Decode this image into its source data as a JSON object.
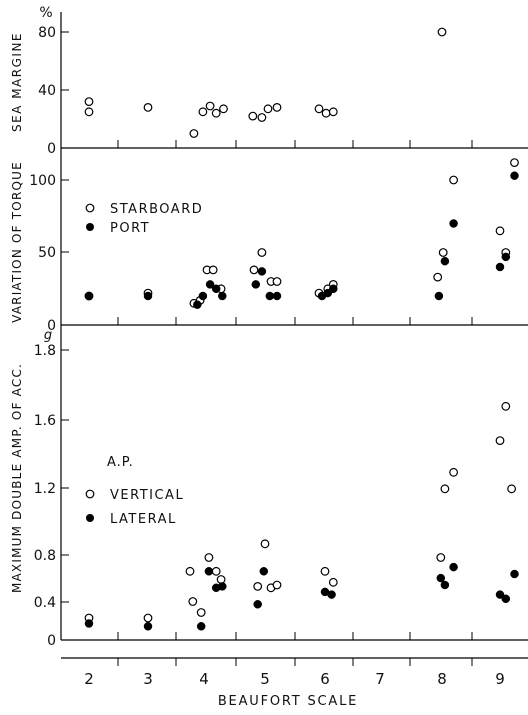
{
  "x_axis": {
    "label": "BEAUFORT SCALE",
    "ticks": [
      "2",
      "3",
      "4",
      "5",
      "6",
      "7",
      "8",
      "9"
    ]
  },
  "chart_data": [
    {
      "type": "scatter",
      "ylabel": "SEA MARGINE",
      "unit": "%",
      "ylim": [
        0,
        90
      ],
      "yticks": [
        "0",
        "40",
        "80"
      ],
      "series": [
        {
          "marker": "open-circle",
          "points": [
            [
              2,
              32
            ],
            [
              2,
              25
            ],
            [
              3,
              28
            ],
            [
              3.82,
              10
            ],
            [
              3.98,
              25
            ],
            [
              4.1,
              29
            ],
            [
              4.2,
              24
            ],
            [
              4.32,
              27
            ],
            [
              4.8,
              22
            ],
            [
              4.95,
              21
            ],
            [
              5.05,
              27
            ],
            [
              5.2,
              28
            ],
            [
              5.9,
              27
            ],
            [
              6.02,
              24
            ],
            [
              6.15,
              25
            ],
            [
              8,
              80
            ]
          ]
        }
      ]
    },
    {
      "type": "scatter",
      "ylabel": "VARIATION OF TORQUE",
      "ylim": [
        0,
        110
      ],
      "yticks": [
        "0",
        "50",
        "100"
      ],
      "series": [
        {
          "name": "STARBOARD",
          "marker": "open-circle",
          "points": [
            [
              2,
              20
            ],
            [
              3,
              22
            ],
            [
              3.82,
              15
            ],
            [
              3.93,
              17
            ],
            [
              4.05,
              38
            ],
            [
              4.15,
              38
            ],
            [
              4.28,
              25
            ],
            [
              4.82,
              38
            ],
            [
              4.95,
              50
            ],
            [
              5.1,
              30
            ],
            [
              5.2,
              30
            ],
            [
              5.9,
              22
            ],
            [
              6.05,
              25
            ],
            [
              6.15,
              28
            ],
            [
              7.93,
              33
            ],
            [
              8.02,
              50
            ],
            [
              8.2,
              100
            ],
            [
              9,
              65
            ],
            [
              9.1,
              50
            ],
            [
              9.25,
              112
            ]
          ]
        },
        {
          "name": "PORT",
          "marker": "filled-circle",
          "points": [
            [
              2,
              20
            ],
            [
              3,
              20
            ],
            [
              3.88,
              14
            ],
            [
              3.98,
              20
            ],
            [
              4.1,
              28
            ],
            [
              4.2,
              25
            ],
            [
              4.3,
              20
            ],
            [
              4.85,
              28
            ],
            [
              4.95,
              37
            ],
            [
              5.08,
              20
            ],
            [
              5.2,
              20
            ],
            [
              5.95,
              20
            ],
            [
              6.05,
              22
            ],
            [
              6.15,
              25
            ],
            [
              7.95,
              20
            ],
            [
              8.05,
              44
            ],
            [
              8.2,
              70
            ],
            [
              9,
              40
            ],
            [
              9.1,
              47
            ],
            [
              9.25,
              103
            ]
          ]
        }
      ]
    },
    {
      "type": "scatter",
      "ylabel": "MAXIMUM  DOUBLE AMP. OF ACC.",
      "unit": "g",
      "ylim": [
        0,
        1.85
      ],
      "yticks": [
        "0",
        "0.4",
        "0.8",
        "1.2",
        "1.6",
        "1.8"
      ],
      "legend_title": "A.P.",
      "series": [
        {
          "name": "VERTICAL",
          "marker": "open-circle",
          "points": [
            [
              2,
              0.16
            ],
            [
              3,
              0.16
            ],
            [
              3.75,
              0.5
            ],
            [
              3.8,
              0.28
            ],
            [
              3.95,
              0.2
            ],
            [
              4.08,
              0.6
            ],
            [
              4.2,
              0.5
            ],
            [
              4.28,
              0.44
            ],
            [
              4.88,
              0.39
            ],
            [
              5,
              0.7
            ],
            [
              5.1,
              0.38
            ],
            [
              5.2,
              0.4
            ],
            [
              6,
              0.5
            ],
            [
              6.15,
              0.42
            ],
            [
              7.98,
              0.6
            ],
            [
              8.05,
              1.1
            ],
            [
              8.2,
              1.22
            ],
            [
              9,
              1.45
            ],
            [
              9.1,
              1.7
            ],
            [
              9.2,
              1.1
            ]
          ]
        },
        {
          "name": "LATERAL",
          "marker": "filled-circle",
          "points": [
            [
              2,
              0.12
            ],
            [
              3,
              0.1
            ],
            [
              3.95,
              0.1
            ],
            [
              4.08,
              0.5
            ],
            [
              4.2,
              0.38
            ],
            [
              4.3,
              0.39
            ],
            [
              4.88,
              0.26
            ],
            [
              4.98,
              0.5
            ],
            [
              6,
              0.35
            ],
            [
              6.12,
              0.33
            ],
            [
              7.98,
              0.45
            ],
            [
              8.05,
              0.4
            ],
            [
              8.2,
              0.53
            ],
            [
              9,
              0.33
            ],
            [
              9.1,
              0.3
            ],
            [
              9.25,
              0.48
            ]
          ]
        }
      ]
    }
  ]
}
